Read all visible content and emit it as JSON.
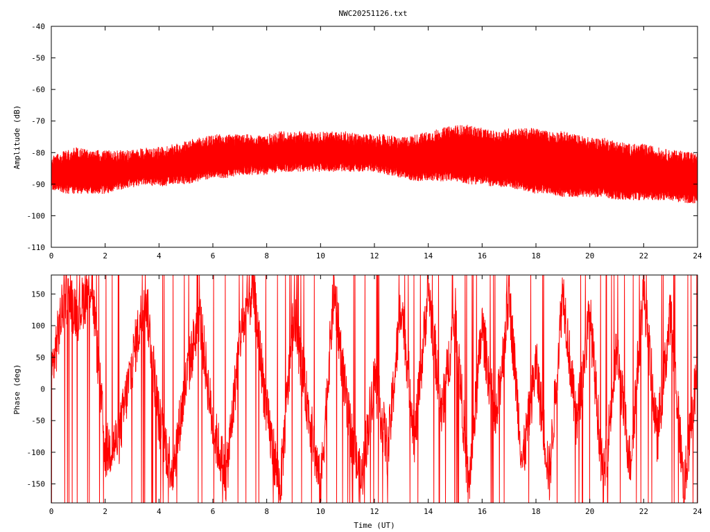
{
  "title": "NWC20251126.txt",
  "chart_data": [
    {
      "type": "line",
      "xlabel": "",
      "ylabel": "Amplitude (dB)",
      "xlim": [
        0,
        24
      ],
      "ylim": [
        -110,
        -40
      ],
      "xticks": [
        "0",
        "2",
        "4",
        "6",
        "8",
        "10",
        "12",
        "14",
        "16",
        "18",
        "20",
        "22",
        "24"
      ],
      "yticks": [
        "-40",
        "-50",
        "-60",
        "-70",
        "-80",
        "-90",
        "-100",
        "-110"
      ],
      "grid": false,
      "series_color": "#ff0000",
      "envelope_hours": [
        0,
        0.5,
        1,
        1.5,
        2,
        2.5,
        3,
        3.5,
        4,
        4.5,
        5,
        5.5,
        6,
        6.5,
        7,
        7.5,
        8,
        8.5,
        9,
        9.5,
        10,
        10.5,
        11,
        11.5,
        12,
        12.5,
        13,
        13.5,
        14,
        14.5,
        15,
        15.5,
        16,
        16.5,
        17,
        17.5,
        18,
        18.5,
        19,
        19.5,
        20,
        20.5,
        21,
        21.5,
        22,
        22.5,
        23,
        23.5,
        24
      ],
      "upper_db": [
        -84,
        -82,
        -81,
        -82,
        -82,
        -82,
        -82,
        -81,
        -81,
        -80,
        -79,
        -78,
        -77,
        -77,
        -77,
        -77,
        -77,
        -76,
        -76,
        -76,
        -76,
        -76,
        -76,
        -77,
        -77,
        -77,
        -78,
        -77,
        -76,
        -75,
        -74,
        -74,
        -75,
        -76,
        -75,
        -75,
        -75,
        -76,
        -76,
        -77,
        -78,
        -78,
        -79,
        -80,
        -80,
        -81,
        -82,
        -82,
        -83
      ],
      "lower_db": [
        -90,
        -91,
        -91,
        -91,
        -91,
        -90,
        -89,
        -88,
        -89,
        -88,
        -88,
        -87,
        -86,
        -86,
        -85,
        -85,
        -85,
        -84,
        -84,
        -84,
        -84,
        -84,
        -84,
        -84,
        -84,
        -85,
        -86,
        -87,
        -87,
        -87,
        -87,
        -88,
        -88,
        -89,
        -89,
        -90,
        -91,
        -91,
        -92,
        -92,
        -92,
        -92,
        -93,
        -93,
        -93,
        -93,
        -93,
        -94,
        -94
      ]
    },
    {
      "type": "line",
      "xlabel": "Time (UT)",
      "ylabel": "Phase (deg)",
      "xlim": [
        0,
        24
      ],
      "ylim": [
        -180,
        180
      ],
      "xticks": [
        "0",
        "2",
        "4",
        "6",
        "8",
        "10",
        "12",
        "14",
        "16",
        "18",
        "20",
        "22",
        "24"
      ],
      "yticks": [
        "150",
        "100",
        "50",
        "0",
        "-50",
        "-100",
        "-150"
      ],
      "grid": false,
      "series_color": "#ff0000",
      "phase_trend_hours": [
        0,
        0.5,
        1,
        1.5,
        2,
        2.5,
        3,
        3.5,
        4,
        4.5,
        5,
        5.5,
        6,
        6.5,
        7,
        7.5,
        8,
        8.5,
        9,
        9.5,
        10,
        10.5,
        11,
        11.5,
        12,
        12.5,
        13,
        13.5,
        14,
        14.5,
        15,
        15.5,
        16,
        16.5,
        17,
        17.5,
        18,
        18.5,
        19,
        19.5,
        20,
        20.5,
        21,
        21.5,
        22,
        22.5,
        23,
        23.5,
        24
      ],
      "phase_trend_deg": [
        20,
        150,
        120,
        170,
        -100,
        -80,
        40,
        150,
        -50,
        -130,
        10,
        120,
        -60,
        -140,
        80,
        160,
        -40,
        -160,
        120,
        -20,
        -160,
        160,
        -40,
        -150,
        20,
        -100,
        140,
        -80,
        160,
        -40,
        120,
        -160,
        100,
        -60,
        150,
        -120,
        40,
        -140,
        160,
        -60,
        120,
        -150,
        60,
        -120,
        160,
        -80,
        120,
        -160,
        40
      ]
    }
  ]
}
